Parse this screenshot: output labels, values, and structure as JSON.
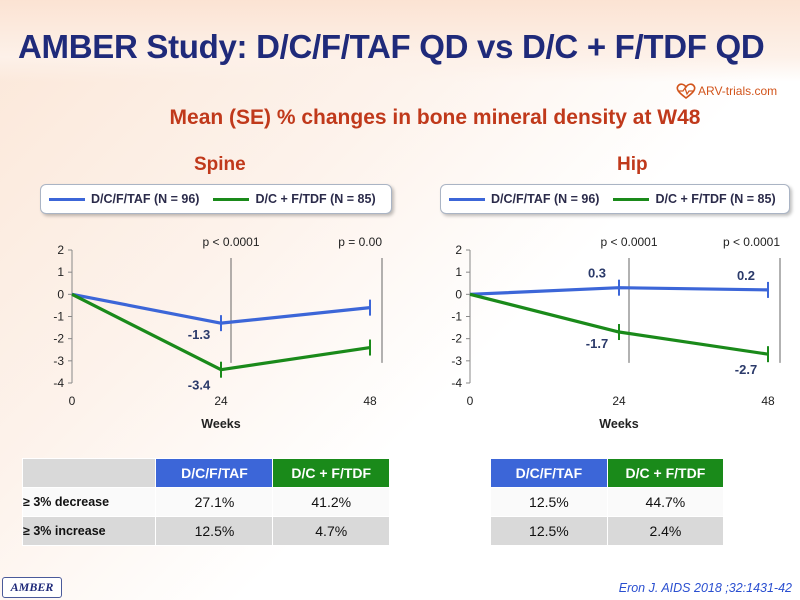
{
  "title": "AMBER Study: D/C/F/TAF QD vs D/C + F/TDF QD",
  "subtitle": "Mean (SE) % changes in bone mineral density at W48",
  "logo": {
    "text": "ARV-trials.com"
  },
  "colors": {
    "blue": "#3c66d8",
    "green": "#1a8a1a",
    "title": "#1f2a7a",
    "accent": "#c0391b"
  },
  "legend": {
    "blue_label": "D/C/F/TAF (N = 96)",
    "green_label": "D/C + F/TDF (N = 85)"
  },
  "chart_data": [
    {
      "type": "line",
      "title": "Spine",
      "xlabel": "Weeks",
      "x": [
        0,
        24,
        48
      ],
      "yticks": [
        2,
        1,
        0,
        -1,
        -2,
        -3,
        -4
      ],
      "ylim": [
        -4,
        2
      ],
      "series": [
        {
          "name": "D/C/F/TAF (N = 96)",
          "color": "#3c66d8",
          "values": [
            0,
            -1.3,
            -0.6
          ]
        },
        {
          "name": "D/C + F/TDF (N = 85)",
          "color": "#1a8a1a",
          "values": [
            0,
            -3.4,
            -2.4
          ]
        }
      ],
      "data_labels": [
        {
          "x": 24,
          "y": -1.3,
          "text": "-1.3"
        },
        {
          "x": 24,
          "y": -3.4,
          "text": "-3.4"
        }
      ],
      "pvalues": [
        {
          "x": 24,
          "text": "p < 0.0001"
        },
        {
          "x": 48,
          "text": "p = 0.00"
        }
      ]
    },
    {
      "type": "line",
      "title": "Hip",
      "xlabel": "Weeks",
      "x": [
        0,
        24,
        48
      ],
      "yticks": [
        2,
        1,
        0,
        -1,
        -2,
        -3,
        -4
      ],
      "ylim": [
        -4,
        2
      ],
      "series": [
        {
          "name": "D/C/F/TAF (N = 96)",
          "color": "#3c66d8",
          "values": [
            0,
            0.3,
            0.2
          ]
        },
        {
          "name": "D/C + F/TDF (N = 85)",
          "color": "#1a8a1a",
          "values": [
            0,
            -1.7,
            -2.7
          ]
        }
      ],
      "data_labels": [
        {
          "x": 24,
          "y": 0.3,
          "text": "0.3"
        },
        {
          "x": 48,
          "y": 0.2,
          "text": "0.2"
        },
        {
          "x": 24,
          "y": -1.7,
          "text": "-1.7"
        },
        {
          "x": 48,
          "y": -2.7,
          "text": "-2.7"
        }
      ],
      "pvalues": [
        {
          "x": 24,
          "text": "p < 0.0001"
        },
        {
          "x": 48,
          "text": "p < 0.0001"
        }
      ]
    }
  ],
  "tables": {
    "headers": [
      "D/C/F/TAF",
      "D/C + F/TDF"
    ],
    "row_labels": [
      "≥ 3% decrease",
      "≥ 3% increase"
    ],
    "spine": [
      [
        "27.1%",
        "41.2%"
      ],
      [
        "12.5%",
        "4.7%"
      ]
    ],
    "hip": [
      [
        "12.5%",
        "44.7%"
      ],
      [
        "12.5%",
        "2.4%"
      ]
    ]
  },
  "footer": {
    "badge": "AMBER",
    "citation": "Eron J. AIDS 2018 ;32:1431-42"
  }
}
